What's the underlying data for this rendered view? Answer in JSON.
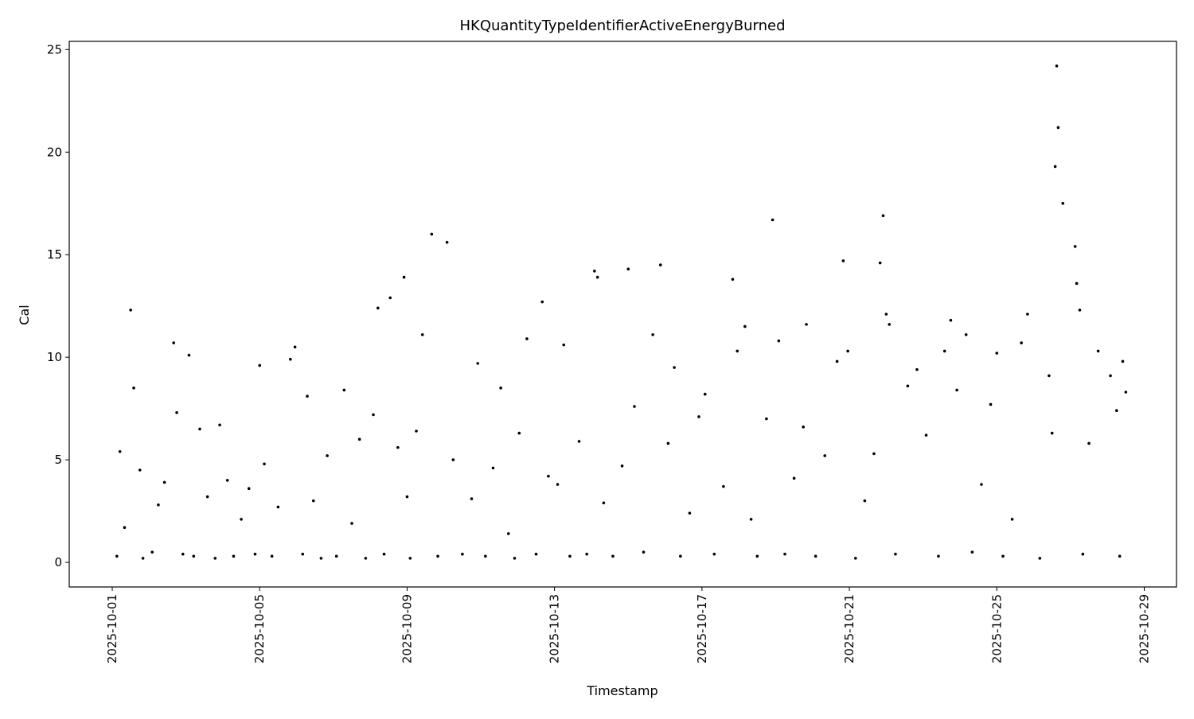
{
  "chart_data": {
    "type": "scatter",
    "title": "HKQuantityTypeIdentifierActiveEnergyBurned",
    "x_label": "Timestamp",
    "y_label": "Cal",
    "color": "#000000",
    "xlim": [
      "2025-09-29T20:00",
      "2025-10-29T21:00"
    ],
    "xticks": [
      "2025-10-01",
      "2025-10-05",
      "2025-10-09",
      "2025-10-13",
      "2025-10-17",
      "2025-10-21",
      "2025-10-25",
      "2025-10-29"
    ],
    "ylim": [
      -1.2,
      25.4
    ],
    "yticks": [
      0,
      5,
      10,
      15,
      20,
      25
    ],
    "grid": false,
    "x": [
      "2025-10-01T03:00",
      "2025-10-01T05:00",
      "2025-10-01T08:00",
      "2025-10-01T12:00",
      "2025-10-01T14:00",
      "2025-10-01T18:00",
      "2025-10-01T20:00",
      "2025-10-02T02:00",
      "2025-10-02T06:00",
      "2025-10-02T10:00",
      "2025-10-02T16:00",
      "2025-10-02T18:00",
      "2025-10-02T22:00",
      "2025-10-03T02:00",
      "2025-10-03T05:00",
      "2025-10-03T09:00",
      "2025-10-03T14:00",
      "2025-10-03T19:00",
      "2025-10-03T22:00",
      "2025-10-04T03:00",
      "2025-10-04T07:00",
      "2025-10-04T12:00",
      "2025-10-04T17:00",
      "2025-10-04T21:00",
      "2025-10-05T00:00",
      "2025-10-05T03:00",
      "2025-10-05T08:00",
      "2025-10-05T12:00",
      "2025-10-05T20:00",
      "2025-10-05T23:00",
      "2025-10-06T04:00",
      "2025-10-06T07:00",
      "2025-10-06T11:00",
      "2025-10-06T16:00",
      "2025-10-06T20:00",
      "2025-10-07T02:00",
      "2025-10-07T07:00",
      "2025-10-07T12:00",
      "2025-10-07T17:00",
      "2025-10-07T21:00",
      "2025-10-08T02:00",
      "2025-10-08T05:00",
      "2025-10-08T09:00",
      "2025-10-08T13:00",
      "2025-10-08T18:00",
      "2025-10-08T22:00",
      "2025-10-09T00:00",
      "2025-10-09T02:00",
      "2025-10-09T06:00",
      "2025-10-09T10:00",
      "2025-10-09T16:00",
      "2025-10-09T20:00",
      "2025-10-10T02:00",
      "2025-10-10T06:00",
      "2025-10-10T12:00",
      "2025-10-10T18:00",
      "2025-10-10T22:00",
      "2025-10-11T03:00",
      "2025-10-11T08:00",
      "2025-10-11T13:00",
      "2025-10-11T18:00",
      "2025-10-11T22:00",
      "2025-10-12T01:00",
      "2025-10-12T06:00",
      "2025-10-12T12:00",
      "2025-10-12T16:00",
      "2025-10-12T20:00",
      "2025-10-13T02:00",
      "2025-10-13T06:00",
      "2025-10-13T10:00",
      "2025-10-13T16:00",
      "2025-10-13T21:00",
      "2025-10-14T02:00",
      "2025-10-14T04:00",
      "2025-10-14T08:00",
      "2025-10-14T14:00",
      "2025-10-14T20:00",
      "2025-10-15T00:00",
      "2025-10-15T04:00",
      "2025-10-15T10:00",
      "2025-10-15T16:00",
      "2025-10-15T21:00",
      "2025-10-16T02:00",
      "2025-10-16T06:00",
      "2025-10-16T10:00",
      "2025-10-16T16:00",
      "2025-10-16T22:00",
      "2025-10-17T02:00",
      "2025-10-17T08:00",
      "2025-10-17T14:00",
      "2025-10-17T20:00",
      "2025-10-17T23:00",
      "2025-10-18T04:00",
      "2025-10-18T08:00",
      "2025-10-18T12:00",
      "2025-10-18T18:00",
      "2025-10-18T22:00",
      "2025-10-19T02:00",
      "2025-10-19T06:00",
      "2025-10-19T12:00",
      "2025-10-19T18:00",
      "2025-10-19T20:00",
      "2025-10-20T02:00",
      "2025-10-20T08:00",
      "2025-10-20T16:00",
      "2025-10-20T20:00",
      "2025-10-20T23:00",
      "2025-10-21T04:00",
      "2025-10-21T10:00",
      "2025-10-21T16:00",
      "2025-10-21T20:00",
      "2025-10-21T22:00",
      "2025-10-22T00:00",
      "2025-10-22T02:00",
      "2025-10-22T06:00",
      "2025-10-22T14:00",
      "2025-10-22T20:00",
      "2025-10-23T02:00",
      "2025-10-23T10:00",
      "2025-10-23T14:00",
      "2025-10-23T18:00",
      "2025-10-23T22:00",
      "2025-10-24T04:00",
      "2025-10-24T08:00",
      "2025-10-24T14:00",
      "2025-10-24T20:00",
      "2025-10-25T00:00",
      "2025-10-25T04:00",
      "2025-10-25T10:00",
      "2025-10-25T16:00",
      "2025-10-25T20:00",
      "2025-10-26T04:00",
      "2025-10-26T10:00",
      "2025-10-26T12:00",
      "2025-10-26T14:00",
      "2025-10-26T15:00",
      "2025-10-26T16:00",
      "2025-10-26T19:00",
      "2025-10-27T03:00",
      "2025-10-27T04:00",
      "2025-10-27T06:00",
      "2025-10-27T08:00",
      "2025-10-27T12:00",
      "2025-10-27T18:00",
      "2025-10-28T02:00",
      "2025-10-28T06:00",
      "2025-10-28T08:00",
      "2025-10-28T10:00",
      "2025-10-28T12:00"
    ],
    "values": [
      0.3,
      5.4,
      1.7,
      12.3,
      8.5,
      4.5,
      0.2,
      0.5,
      2.8,
      3.9,
      10.7,
      7.3,
      0.4,
      10.1,
      0.3,
      6.5,
      3.2,
      0.2,
      6.7,
      4.0,
      0.3,
      2.1,
      3.6,
      0.4,
      9.6,
      4.8,
      0.3,
      2.7,
      9.9,
      10.5,
      0.4,
      8.1,
      3.0,
      0.2,
      5.2,
      0.3,
      8.4,
      1.9,
      6.0,
      0.2,
      7.2,
      12.4,
      0.4,
      12.9,
      5.6,
      13.9,
      3.2,
      0.2,
      6.4,
      11.1,
      16.0,
      0.3,
      15.6,
      5.0,
      0.4,
      3.1,
      9.7,
      0.3,
      4.6,
      8.5,
      1.4,
      0.2,
      6.3,
      10.9,
      0.4,
      12.7,
      4.2,
      3.8,
      10.6,
      0.3,
      5.9,
      0.4,
      14.2,
      13.9,
      2.9,
      0.3,
      4.7,
      14.3,
      7.6,
      0.5,
      11.1,
      14.5,
      5.8,
      9.5,
      0.3,
      2.4,
      7.1,
      8.2,
      0.4,
      3.7,
      13.8,
      10.3,
      11.5,
      2.1,
      0.3,
      7.0,
      16.7,
      10.8,
      0.4,
      4.1,
      6.6,
      11.6,
      0.3,
      5.2,
      9.8,
      14.7,
      10.3,
      0.2,
      3.0,
      5.3,
      14.6,
      16.9,
      12.1,
      11.6,
      0.4,
      8.6,
      9.4,
      6.2,
      0.3,
      10.3,
      11.8,
      8.4,
      11.1,
      0.5,
      3.8,
      7.7,
      10.2,
      0.3,
      2.1,
      10.7,
      12.1,
      0.2,
      9.1,
      6.3,
      19.3,
      24.2,
      21.2,
      17.5,
      15.4,
      13.6,
      12.3,
      0.4,
      5.8,
      10.3,
      9.1,
      7.4,
      0.3,
      9.8,
      8.3
    ]
  }
}
